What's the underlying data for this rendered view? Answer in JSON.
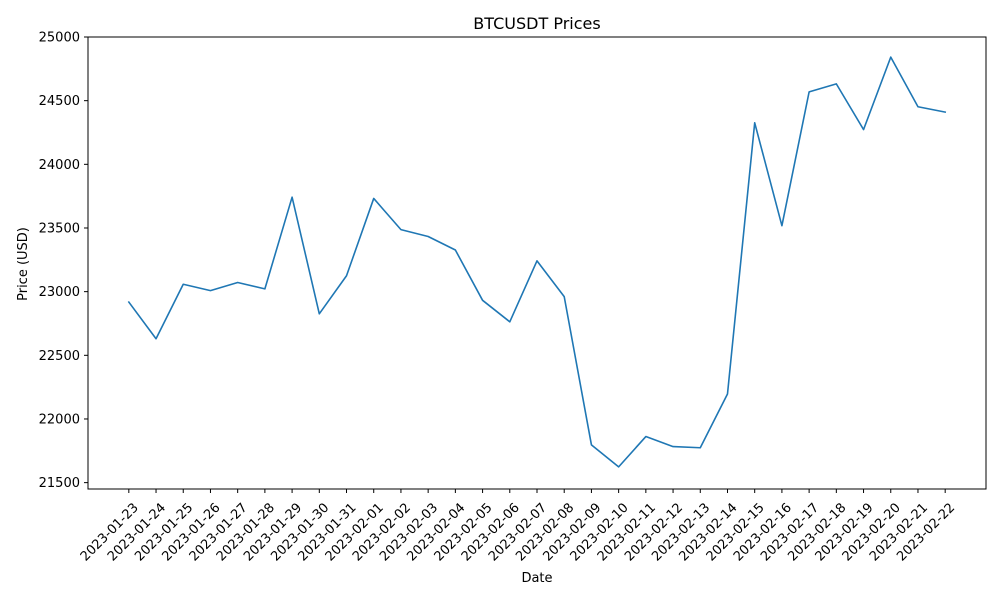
{
  "chart_data": {
    "type": "line",
    "title": "BTCUSDT Prices",
    "xlabel": "Date",
    "ylabel": "Price (USD)",
    "ylim": [
      21450,
      25000
    ],
    "yticks": [
      21500,
      22000,
      22500,
      23000,
      23500,
      24000,
      24500,
      25000
    ],
    "grid": false,
    "line_color": "#1f77b4",
    "categories": [
      "2023-01-23",
      "2023-01-24",
      "2023-01-25",
      "2023-01-26",
      "2023-01-27",
      "2023-01-28",
      "2023-01-29",
      "2023-01-30",
      "2023-01-31",
      "2023-02-01",
      "2023-02-02",
      "2023-02-03",
      "2023-02-04",
      "2023-02-05",
      "2023-02-06",
      "2023-02-07",
      "2023-02-08",
      "2023-02-09",
      "2023-02-10",
      "2023-02-11",
      "2023-02-12",
      "2023-02-13",
      "2023-02-14",
      "2023-02-15",
      "2023-02-16",
      "2023-02-17",
      "2023-02-18",
      "2023-02-19",
      "2023-02-20",
      "2023-02-21",
      "2023-02-22"
    ],
    "series": [
      {
        "values": [
          22918,
          22630,
          23058,
          23008,
          23072,
          23022,
          23742,
          22826,
          23125,
          23732,
          23487,
          23433,
          23327,
          22932,
          22763,
          23242,
          22961,
          21797,
          21624,
          21862,
          21783,
          21774,
          22196,
          24326,
          23518,
          24569,
          24632,
          24273,
          24842,
          24452,
          24410
        ]
      }
    ]
  }
}
